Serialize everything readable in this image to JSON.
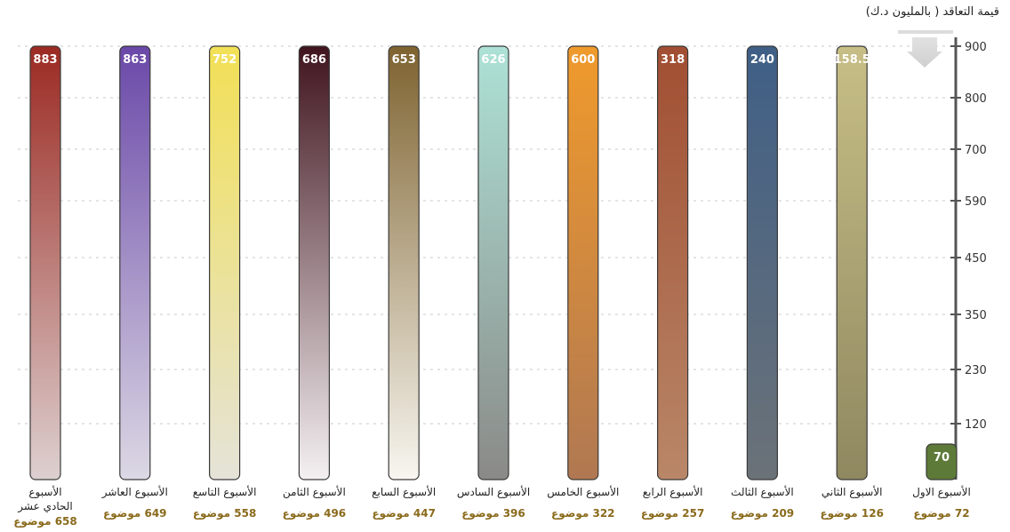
{
  "chart_data": {
    "type": "bar",
    "ylabel": "قيمة التعاقد ( بالمليون د.ك)",
    "yticks": [
      "900",
      "800",
      "700",
      "590",
      "450",
      "350",
      "230",
      "120"
    ],
    "categories": [
      "الأسبوع الحادي عشر",
      "الأسبوع العاشر",
      "الأسبوع التاسع",
      "الأسبوع الثامن",
      "الأسبوع السابع",
      "الأسبوع السادس",
      "الأسبوع الخامس",
      "الأسبوع الرابع",
      "الأسبوع الثالث",
      "الأسبوع الثاني",
      "الأسبوع الاول"
    ],
    "category_lines": [
      [
        "الأسبوع",
        "الحادي عشر"
      ],
      [
        "الأسبوع العاشر"
      ],
      [
        "الأسبوع التاسع"
      ],
      [
        "الأسبوع الثامن"
      ],
      [
        "الأسبوع السابع"
      ],
      [
        "الأسبوع السادس"
      ],
      [
        "الأسبوع الخامس"
      ],
      [
        "الأسبوع الرابع"
      ],
      [
        "الأسبوع الثالث"
      ],
      [
        "الأسبوع الثاني"
      ],
      [
        "الأسبوع الاول"
      ]
    ],
    "values": [
      883,
      863,
      752,
      686,
      653,
      626,
      600,
      318,
      240,
      158.5,
      70
    ],
    "value_labels": [
      "883",
      "863",
      "752",
      "686",
      "653",
      "626",
      "600",
      "318",
      "240",
      "158.5",
      "70"
    ],
    "topic_counts": [
      "658",
      "649",
      "558",
      "496",
      "447",
      "396",
      "322",
      "257",
      "209",
      "126",
      "72"
    ],
    "topic_word": "موضوع",
    "colors": [
      [
        "#9b2a22",
        "#ddd0d0"
      ],
      [
        "#6a48a8",
        "#dcd8e4"
      ],
      [
        "#f2e055",
        "#e5e3d8"
      ],
      [
        "#40141e",
        "#f4f0f2"
      ],
      [
        "#7e6330",
        "#f8f6f0"
      ],
      [
        "#ade2d6",
        "#8a8a88"
      ],
      [
        "#f09a2c",
        "#b07852"
      ],
      [
        "#a14e32",
        "#b98768"
      ],
      [
        "#3f5f86",
        "#6b7278"
      ],
      [
        "#c7be86",
        "#8f8860"
      ],
      [
        "#5d7a38",
        "#5d7a38"
      ]
    ],
    "ylim": [
      0,
      900
    ],
    "grid": true
  }
}
